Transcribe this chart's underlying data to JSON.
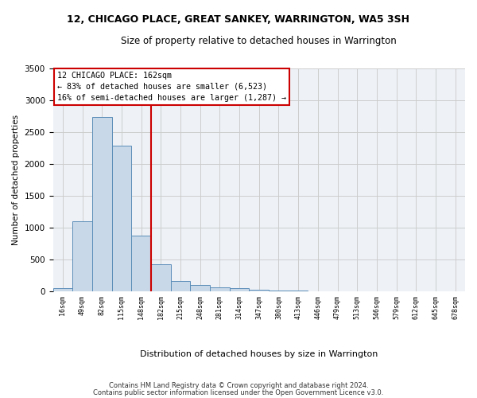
{
  "title": "12, CHICAGO PLACE, GREAT SANKEY, WARRINGTON, WA5 3SH",
  "subtitle": "Size of property relative to detached houses in Warrington",
  "xlabel": "Distribution of detached houses by size in Warrington",
  "ylabel": "Number of detached properties",
  "bin_labels": [
    "16sqm",
    "49sqm",
    "82sqm",
    "115sqm",
    "148sqm",
    "182sqm",
    "215sqm",
    "248sqm",
    "281sqm",
    "314sqm",
    "347sqm",
    "380sqm",
    "413sqm",
    "446sqm",
    "479sqm",
    "513sqm",
    "546sqm",
    "579sqm",
    "612sqm",
    "645sqm",
    "678sqm"
  ],
  "bar_values": [
    50,
    1100,
    2730,
    2290,
    880,
    430,
    170,
    100,
    65,
    50,
    30,
    20,
    15,
    8,
    4,
    2,
    1,
    1,
    0,
    0,
    0
  ],
  "bar_color": "#c8d8e8",
  "bar_edge_color": "#5b8db8",
  "vline_x": 4.5,
  "annotation_title": "12 CHICAGO PLACE: 162sqm",
  "annotation_line1": "← 83% of detached houses are smaller (6,523)",
  "annotation_line2": "16% of semi-detached houses are larger (1,287) →",
  "vline_color": "#cc0000",
  "annotation_box_edgecolor": "#cc0000",
  "ylim": [
    0,
    3500
  ],
  "yticks": [
    0,
    500,
    1000,
    1500,
    2000,
    2500,
    3000,
    3500
  ],
  "grid_color": "#cccccc",
  "background_color": "#eef2f7",
  "footnote1": "Contains HM Land Registry data © Crown copyright and database right 2024.",
  "footnote2": "Contains public sector information licensed under the Open Government Licence v3.0."
}
